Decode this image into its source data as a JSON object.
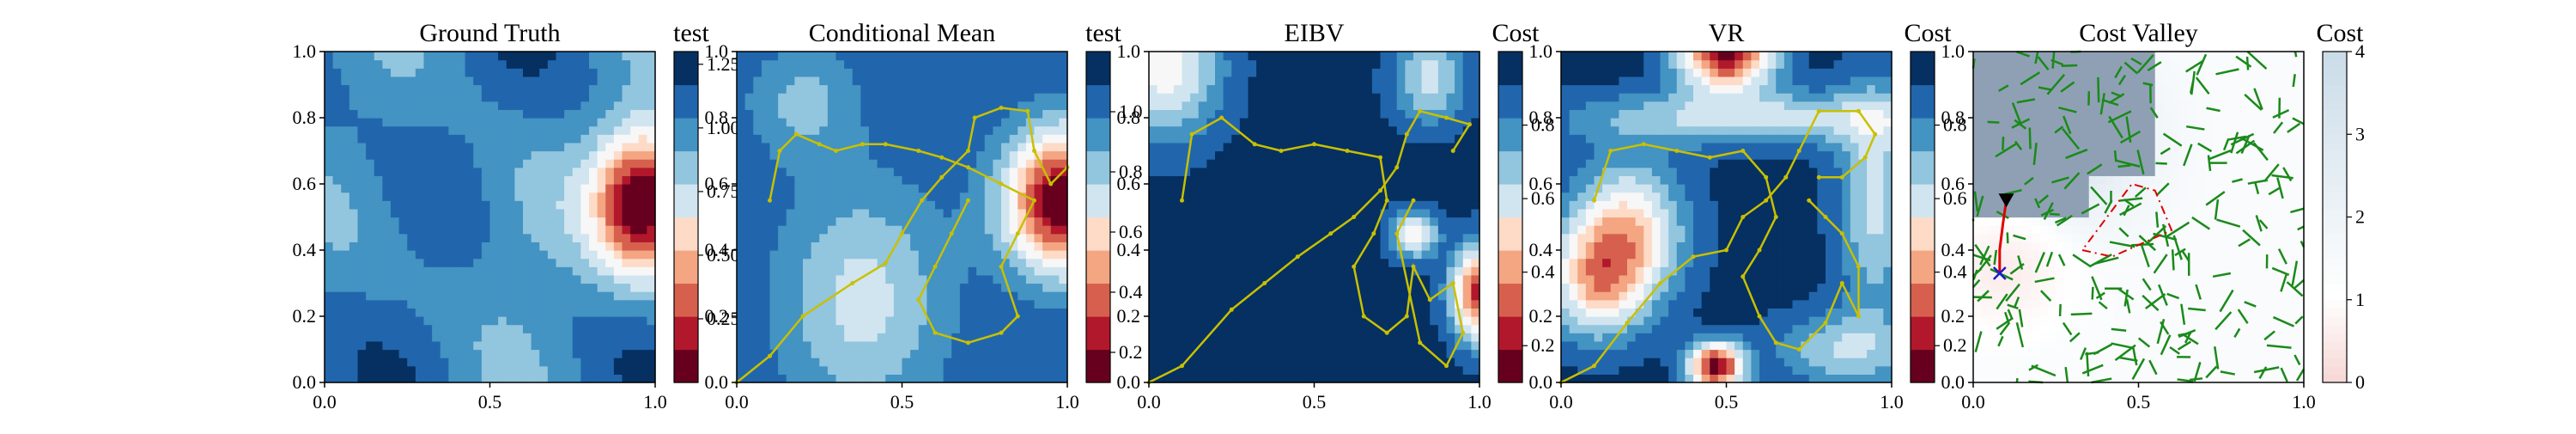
{
  "figure": {
    "panels": [
      {
        "title": "Ground Truth",
        "colorbar_label": "test",
        "cbar_ticks": [
          "0.25",
          "0.50",
          "0.75",
          "1.00",
          "1.25"
        ]
      },
      {
        "title": "Conditional Mean",
        "colorbar_label": "test",
        "cbar_ticks": [
          "0.2",
          "0.4",
          "0.6",
          "0.8",
          "1.0"
        ]
      },
      {
        "title": "EIBV",
        "colorbar_label": "Cost",
        "cbar_ticks": [
          "0.2",
          "0.4",
          "0.6",
          "0.8"
        ]
      },
      {
        "title": "VR",
        "colorbar_label": "Cost",
        "cbar_ticks": [
          "0.2",
          "0.4",
          "0.6",
          "0.8"
        ]
      },
      {
        "title": "Cost Valley",
        "colorbar_label": "Cost",
        "cbar_ticks": [
          "0",
          "1",
          "2",
          "3",
          "4"
        ]
      }
    ],
    "y_ticks": [
      "0.0",
      "0.2",
      "0.4",
      "0.6",
      "0.8",
      "1.0"
    ],
    "x_ticks": [
      "0.0",
      "0.5",
      "1.0"
    ]
  },
  "chart_data": [
    {
      "type": "heatmap",
      "title": "Ground Truth",
      "colorbar_label": "test",
      "xlim": [
        0,
        1
      ],
      "ylim": [
        0,
        1
      ],
      "clim": [
        0.0,
        1.3
      ],
      "colormap": "RdBu",
      "description_of_field": "mostly 0.8-1.25 (blue) with a low-value hotspot near (0.95, 0.55)"
    },
    {
      "type": "heatmap",
      "title": "Conditional Mean",
      "colorbar_label": "test",
      "xlim": [
        0,
        1
      ],
      "ylim": [
        0,
        1
      ],
      "clim": [
        0.05,
        1.15
      ],
      "colormap": "RdBu",
      "path_color": "#c8c000",
      "path": [
        [
          0.0,
          0.0
        ],
        [
          0.1,
          0.08
        ],
        [
          0.2,
          0.2
        ],
        [
          0.35,
          0.3
        ],
        [
          0.45,
          0.36
        ],
        [
          0.5,
          0.45
        ],
        [
          0.56,
          0.55
        ],
        [
          0.62,
          0.62
        ],
        [
          0.7,
          0.7
        ],
        [
          0.72,
          0.8
        ],
        [
          0.8,
          0.83
        ],
        [
          0.88,
          0.82
        ],
        [
          0.9,
          0.7
        ],
        [
          0.95,
          0.6
        ],
        [
          1.0,
          0.65
        ]
      ],
      "path2": [
        [
          0.1,
          0.55
        ],
        [
          0.13,
          0.7
        ],
        [
          0.18,
          0.75
        ],
        [
          0.25,
          0.72
        ],
        [
          0.3,
          0.7
        ],
        [
          0.38,
          0.72
        ],
        [
          0.45,
          0.72
        ],
        [
          0.55,
          0.7
        ],
        [
          0.62,
          0.68
        ],
        [
          0.7,
          0.65
        ],
        [
          0.8,
          0.6
        ],
        [
          0.9,
          0.55
        ],
        [
          0.85,
          0.45
        ],
        [
          0.8,
          0.35
        ],
        [
          0.85,
          0.2
        ],
        [
          0.8,
          0.15
        ],
        [
          0.7,
          0.12
        ],
        [
          0.6,
          0.15
        ],
        [
          0.55,
          0.25
        ],
        [
          0.6,
          0.35
        ],
        [
          0.65,
          0.45
        ],
        [
          0.7,
          0.55
        ]
      ]
    },
    {
      "type": "heatmap",
      "title": "EIBV",
      "colorbar_label": "Cost",
      "xlim": [
        0,
        1
      ],
      "ylim": [
        0,
        1
      ],
      "clim": [
        0.05,
        0.95
      ],
      "colormap": "RdBu",
      "path_color": "#c8c000",
      "path": [
        [
          0.0,
          0.0
        ],
        [
          0.1,
          0.05
        ],
        [
          0.25,
          0.22
        ],
        [
          0.35,
          0.3
        ],
        [
          0.45,
          0.38
        ],
        [
          0.55,
          0.45
        ],
        [
          0.62,
          0.5
        ],
        [
          0.7,
          0.58
        ],
        [
          0.75,
          0.65
        ],
        [
          0.78,
          0.75
        ],
        [
          0.82,
          0.82
        ],
        [
          0.9,
          0.8
        ],
        [
          0.97,
          0.78
        ],
        [
          0.92,
          0.7
        ]
      ],
      "path2": [
        [
          0.1,
          0.55
        ],
        [
          0.13,
          0.75
        ],
        [
          0.22,
          0.8
        ],
        [
          0.32,
          0.72
        ],
        [
          0.4,
          0.7
        ],
        [
          0.5,
          0.72
        ],
        [
          0.6,
          0.7
        ],
        [
          0.7,
          0.68
        ],
        [
          0.72,
          0.55
        ],
        [
          0.68,
          0.45
        ],
        [
          0.62,
          0.35
        ],
        [
          0.65,
          0.2
        ],
        [
          0.72,
          0.15
        ],
        [
          0.78,
          0.2
        ],
        [
          0.8,
          0.35
        ],
        [
          0.85,
          0.25
        ],
        [
          0.92,
          0.3
        ],
        [
          0.95,
          0.15
        ],
        [
          0.9,
          0.05
        ],
        [
          0.82,
          0.12
        ],
        [
          0.75,
          0.45
        ],
        [
          0.8,
          0.55
        ]
      ]
    },
    {
      "type": "heatmap",
      "title": "VR",
      "colorbar_label": "Cost",
      "xlim": [
        0,
        1
      ],
      "ylim": [
        0,
        1
      ],
      "clim": [
        0.05,
        0.95
      ],
      "colormap": "RdBu",
      "path_color": "#c8c000",
      "path": [
        [
          0.0,
          0.0
        ],
        [
          0.1,
          0.05
        ],
        [
          0.2,
          0.18
        ],
        [
          0.3,
          0.3
        ],
        [
          0.4,
          0.38
        ],
        [
          0.5,
          0.4
        ],
        [
          0.55,
          0.5
        ],
        [
          0.62,
          0.55
        ],
        [
          0.68,
          0.62
        ],
        [
          0.72,
          0.7
        ],
        [
          0.78,
          0.82
        ],
        [
          0.9,
          0.82
        ],
        [
          0.95,
          0.75
        ],
        [
          0.92,
          0.68
        ],
        [
          0.85,
          0.62
        ],
        [
          0.78,
          0.62
        ]
      ],
      "path2": [
        [
          0.1,
          0.55
        ],
        [
          0.15,
          0.7
        ],
        [
          0.25,
          0.72
        ],
        [
          0.35,
          0.7
        ],
        [
          0.45,
          0.68
        ],
        [
          0.55,
          0.7
        ],
        [
          0.62,
          0.62
        ],
        [
          0.65,
          0.5
        ],
        [
          0.6,
          0.4
        ],
        [
          0.55,
          0.32
        ],
        [
          0.6,
          0.2
        ],
        [
          0.65,
          0.12
        ],
        [
          0.72,
          0.1
        ],
        [
          0.8,
          0.18
        ],
        [
          0.85,
          0.3
        ],
        [
          0.9,
          0.2
        ],
        [
          0.9,
          0.35
        ],
        [
          0.85,
          0.45
        ],
        [
          0.8,
          0.5
        ],
        [
          0.75,
          0.55
        ]
      ]
    },
    {
      "type": "heatmap",
      "title": "Cost Valley",
      "colorbar_label": "Cost",
      "xlim": [
        0,
        1
      ],
      "ylim": [
        0,
        1
      ],
      "clim": [
        0,
        4
      ],
      "colormap": "Reds_to_white_to_blues_light",
      "tree_color": "#1a8a1a",
      "red_path": [
        [
          0.1,
          0.55
        ],
        [
          0.09,
          0.48
        ],
        [
          0.08,
          0.4
        ],
        [
          0.08,
          0.33
        ]
      ],
      "start_marker": [
        0.08,
        0.33
      ],
      "end_marker": [
        0.1,
        0.55
      ],
      "dash_polygon": [
        [
          0.33,
          0.4
        ],
        [
          0.42,
          0.38
        ],
        [
          0.6,
          0.46
        ],
        [
          0.55,
          0.58
        ],
        [
          0.48,
          0.6
        ]
      ]
    }
  ]
}
